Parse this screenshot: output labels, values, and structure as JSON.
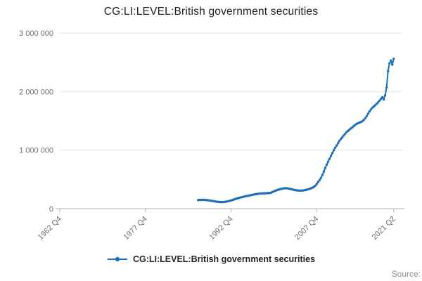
{
  "chart_data": {
    "type": "line",
    "title": "CG:LI:LEVEL:British government securities",
    "source_label": "Source:",
    "legend_position": "bottom",
    "grid": "horizontal",
    "colors": {
      "series": "#1d70b8",
      "grid": "#e4e4e4",
      "axis": "#b0b0b0",
      "tick_text": "#6f6f6f"
    },
    "y_axis": {
      "min": 0,
      "max": 3000000,
      "ticks": [
        0,
        1000000,
        2000000,
        3000000
      ],
      "tick_labels": [
        "0",
        "1 000 000",
        "2 000 000",
        "3 000 000"
      ]
    },
    "x_axis": {
      "start": "1962 Q4",
      "end": "2021 Q2",
      "tick_labels": [
        "1962 Q4",
        "1977 Q4",
        "1992 Q4",
        "2007 Q4",
        "2021 Q2"
      ]
    },
    "series": [
      {
        "name": "CG:LI:LEVEL:British government securities",
        "color": "#1d70b8",
        "points": [
          [
            "1987 Q1",
            148000
          ],
          [
            "1987 Q2",
            150000
          ],
          [
            "1987 Q3",
            149000
          ],
          [
            "1987 Q4",
            151000
          ],
          [
            "1988 Q1",
            150000
          ],
          [
            "1988 Q2",
            148000
          ],
          [
            "1988 Q3",
            146000
          ],
          [
            "1988 Q4",
            143000
          ],
          [
            "1989 Q1",
            139000
          ],
          [
            "1989 Q2",
            135000
          ],
          [
            "1989 Q3",
            131000
          ],
          [
            "1989 Q4",
            127000
          ],
          [
            "1990 Q1",
            123000
          ],
          [
            "1990 Q2",
            119000
          ],
          [
            "1990 Q3",
            116000
          ],
          [
            "1990 Q4",
            114000
          ],
          [
            "1991 Q1",
            113000
          ],
          [
            "1991 Q2",
            113000
          ],
          [
            "1991 Q3",
            115000
          ],
          [
            "1991 Q4",
            118000
          ],
          [
            "1992 Q1",
            122000
          ],
          [
            "1992 Q2",
            127000
          ],
          [
            "1992 Q3",
            133000
          ],
          [
            "1992 Q4",
            140000
          ],
          [
            "1993 Q1",
            148000
          ],
          [
            "1993 Q2",
            156000
          ],
          [
            "1993 Q3",
            164000
          ],
          [
            "1993 Q4",
            172000
          ],
          [
            "1994 Q1",
            180000
          ],
          [
            "1994 Q2",
            187000
          ],
          [
            "1994 Q3",
            193000
          ],
          [
            "1994 Q4",
            199000
          ],
          [
            "1995 Q1",
            205000
          ],
          [
            "1995 Q2",
            211000
          ],
          [
            "1995 Q3",
            216000
          ],
          [
            "1995 Q4",
            221000
          ],
          [
            "1996 Q1",
            226000
          ],
          [
            "1996 Q2",
            231000
          ],
          [
            "1996 Q3",
            236000
          ],
          [
            "1996 Q4",
            241000
          ],
          [
            "1997 Q1",
            246000
          ],
          [
            "1997 Q2",
            250000
          ],
          [
            "1997 Q3",
            254000
          ],
          [
            "1997 Q4",
            257000
          ],
          [
            "1998 Q1",
            259000
          ],
          [
            "1998 Q2",
            261000
          ],
          [
            "1998 Q3",
            262000
          ],
          [
            "1998 Q4",
            263000
          ],
          [
            "1999 Q1",
            264000
          ],
          [
            "1999 Q2",
            266000
          ],
          [
            "1999 Q3",
            268000
          ],
          [
            "1999 Q4",
            271000
          ],
          [
            "2000 Q1",
            285000
          ],
          [
            "2000 Q2",
            295000
          ],
          [
            "2000 Q3",
            305000
          ],
          [
            "2000 Q4",
            315000
          ],
          [
            "2001 Q1",
            323000
          ],
          [
            "2001 Q2",
            330000
          ],
          [
            "2001 Q3",
            337000
          ],
          [
            "2001 Q4",
            343000
          ],
          [
            "2002 Q1",
            347000
          ],
          [
            "2002 Q2",
            349000
          ],
          [
            "2002 Q3",
            348000
          ],
          [
            "2002 Q4",
            345000
          ],
          [
            "2003 Q1",
            340000
          ],
          [
            "2003 Q2",
            334000
          ],
          [
            "2003 Q3",
            328000
          ],
          [
            "2003 Q4",
            322000
          ],
          [
            "2004 Q1",
            317000
          ],
          [
            "2004 Q2",
            313000
          ],
          [
            "2004 Q3",
            310000
          ],
          [
            "2004 Q4",
            308000
          ],
          [
            "2005 Q1",
            308000
          ],
          [
            "2005 Q2",
            310000
          ],
          [
            "2005 Q3",
            313000
          ],
          [
            "2005 Q4",
            318000
          ],
          [
            "2006 Q1",
            324000
          ],
          [
            "2006 Q2",
            331000
          ],
          [
            "2006 Q3",
            339000
          ],
          [
            "2006 Q4",
            348000
          ],
          [
            "2007 Q1",
            358000
          ],
          [
            "2007 Q2",
            372000
          ],
          [
            "2007 Q3",
            390000
          ],
          [
            "2007 Q4",
            420000
          ],
          [
            "2008 Q1",
            455000
          ],
          [
            "2008 Q2",
            485000
          ],
          [
            "2008 Q3",
            525000
          ],
          [
            "2008 Q4",
            575000
          ],
          [
            "2009 Q1",
            635000
          ],
          [
            "2009 Q2",
            695000
          ],
          [
            "2009 Q3",
            750000
          ],
          [
            "2009 Q4",
            800000
          ],
          [
            "2010 Q1",
            850000
          ],
          [
            "2010 Q2",
            900000
          ],
          [
            "2010 Q3",
            950000
          ],
          [
            "2010 Q4",
            1000000
          ],
          [
            "2011 Q1",
            1040000
          ],
          [
            "2011 Q2",
            1080000
          ],
          [
            "2011 Q3",
            1120000
          ],
          [
            "2011 Q4",
            1160000
          ],
          [
            "2012 Q1",
            1190000
          ],
          [
            "2012 Q2",
            1220000
          ],
          [
            "2012 Q3",
            1250000
          ],
          [
            "2012 Q4",
            1280000
          ],
          [
            "2013 Q1",
            1310000
          ],
          [
            "2013 Q2",
            1330000
          ],
          [
            "2013 Q3",
            1350000
          ],
          [
            "2013 Q4",
            1370000
          ],
          [
            "2014 Q1",
            1390000
          ],
          [
            "2014 Q2",
            1410000
          ],
          [
            "2014 Q3",
            1430000
          ],
          [
            "2014 Q4",
            1450000
          ],
          [
            "2015 Q1",
            1460000
          ],
          [
            "2015 Q2",
            1470000
          ],
          [
            "2015 Q3",
            1480000
          ],
          [
            "2015 Q4",
            1495000
          ],
          [
            "2016 Q1",
            1515000
          ],
          [
            "2016 Q2",
            1545000
          ],
          [
            "2016 Q3",
            1580000
          ],
          [
            "2016 Q4",
            1620000
          ],
          [
            "2017 Q1",
            1660000
          ],
          [
            "2017 Q2",
            1695000
          ],
          [
            "2017 Q3",
            1725000
          ],
          [
            "2017 Q4",
            1745000
          ],
          [
            "2018 Q1",
            1765000
          ],
          [
            "2018 Q2",
            1790000
          ],
          [
            "2018 Q3",
            1815000
          ],
          [
            "2018 Q4",
            1845000
          ],
          [
            "2019 Q1",
            1875000
          ],
          [
            "2019 Q2",
            1905000
          ],
          [
            "2019 Q3",
            1865000
          ],
          [
            "2019 Q4",
            1935000
          ],
          [
            "2020 Q1",
            2070000
          ],
          [
            "2020 Q2",
            2350000
          ],
          [
            "2020 Q3",
            2480000
          ],
          [
            "2020 Q4",
            2530000
          ],
          [
            "2021 Q1",
            2460000
          ],
          [
            "2021 Q2",
            2560000
          ]
        ]
      }
    ]
  }
}
